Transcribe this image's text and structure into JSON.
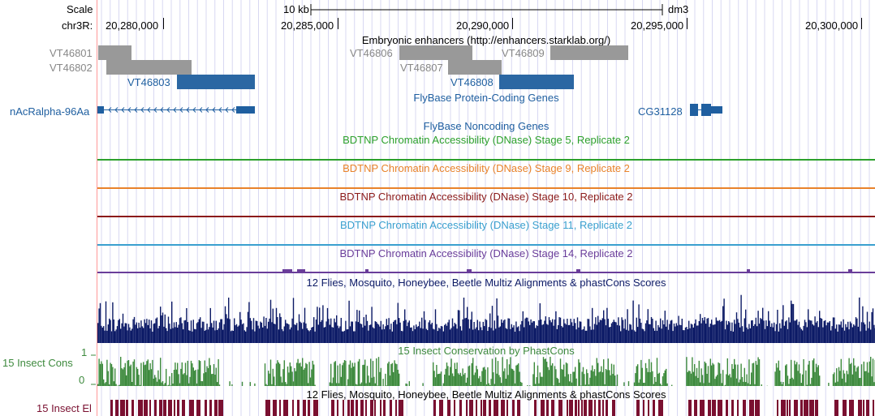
{
  "ruler": {
    "scale_label": "Scale",
    "scale_bar_label": "10 kb",
    "assembly": "dm3",
    "chrom_label": "chr3R:",
    "positions": [
      "20,280,000",
      "20,285,000",
      "20,290,000",
      "20,295,000",
      "20,300,000"
    ]
  },
  "tracks": {
    "enhancers": {
      "title": "Embryonic enhancers (http://enhancers.starklab.org/)",
      "items": [
        "VT46801",
        "VT46802",
        "VT46803",
        "VT46806",
        "VT46807",
        "VT46808",
        "VT46809"
      ]
    },
    "flybase_coding": {
      "title": "FlyBase Protein-Coding Genes",
      "genes": [
        "nAcRalpha-96Aa",
        "CG31128"
      ]
    },
    "flybase_noncoding": {
      "title": "FlyBase Noncoding Genes"
    },
    "dnase": [
      {
        "title": "BDTNP Chromatin Accessibility (DNase) Stage 5, Replicate 2",
        "color": "#2ca02c"
      },
      {
        "title": "BDTNP Chromatin Accessibility (DNase) Stage 9, Replicate 2",
        "color": "#e8822a"
      },
      {
        "title": "BDTNP Chromatin Accessibility (DNase) Stage 10, Replicate 2",
        "color": "#8b1a1a"
      },
      {
        "title": "BDTNP Chromatin Accessibility (DNase) Stage 11, Replicate 2",
        "color": "#3aa0cf"
      },
      {
        "title": "BDTNP Chromatin Accessibility (DNase) Stage 14, Replicate 2",
        "color": "#6a3d9a"
      }
    ],
    "multiz": {
      "title": "12 Flies, Mosquito, Honeybee, Beetle Multiz Alignments & phastCons Scores",
      "color": "#0c1a66"
    },
    "phastcons": {
      "title": "15 Insect Conservation by PhastCons",
      "side_label": "15 Insect Cons",
      "y_max": "1",
      "y_min": "0",
      "color": "#3e8a3e"
    },
    "elements": {
      "title": "12 Flies, Mosquito, Honeybee, Beetle Multiz Alignments & phastCons Scores",
      "side_label": "15 Insect El",
      "color": "#7a1030"
    }
  }
}
